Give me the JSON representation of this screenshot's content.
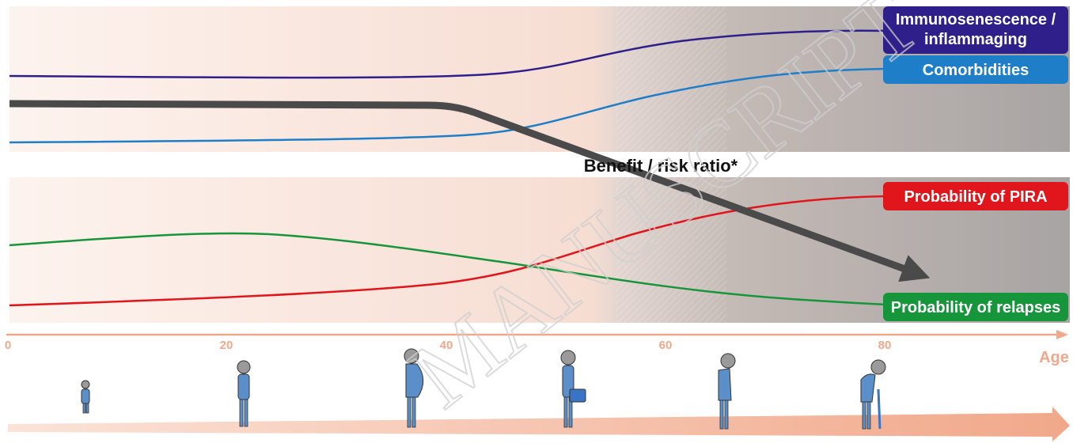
{
  "top_panel": {
    "series": [
      {
        "name": "Immunosenescence / inflammaging",
        "label_lines": [
          "Immunosenescence /",
          "inflammaging"
        ],
        "color": "#2e1f8a",
        "trend": [
          0.07,
          0.05,
          0.04,
          0.06,
          0.3,
          0.88,
          0.95
        ]
      },
      {
        "name": "Comorbidities",
        "label_lines": [
          "Comorbidities"
        ],
        "color": "#1f7ec8",
        "trend": [
          0.05,
          0.06,
          0.08,
          0.12,
          0.45,
          0.85,
          0.96
        ]
      }
    ]
  },
  "bottom_panel": {
    "series": [
      {
        "name": "Probability of PIRA",
        "label_lines": [
          "Probability of PIRA"
        ],
        "color": "#e0161c",
        "trend": [
          0.05,
          0.09,
          0.16,
          0.4,
          0.82,
          0.96
        ]
      },
      {
        "name": "Probability of relapses",
        "label_lines": [
          "Probability of relapses"
        ],
        "color": "#17953a",
        "trend": [
          0.7,
          0.78,
          0.8,
          0.7,
          0.4,
          0.18,
          0.05
        ]
      }
    ]
  },
  "center_label": "Benefit / risk ratio*",
  "axis": {
    "label": "Age",
    "ticks": [
      "0",
      "20",
      "40",
      "60",
      "80"
    ]
  },
  "watermark": "MANUSCRIPT",
  "colors": {
    "arrow": "#4a4a4a",
    "axis": "#f1a88a",
    "figure": "#5b8fc9",
    "head": "#9a9a9a"
  },
  "figures": [
    {
      "age_stage": "child"
    },
    {
      "age_stage": "young adult"
    },
    {
      "age_stage": "pregnant adult"
    },
    {
      "age_stage": "adult with briefcase"
    },
    {
      "age_stage": "older adult"
    },
    {
      "age_stage": "elderly with cane"
    }
  ]
}
